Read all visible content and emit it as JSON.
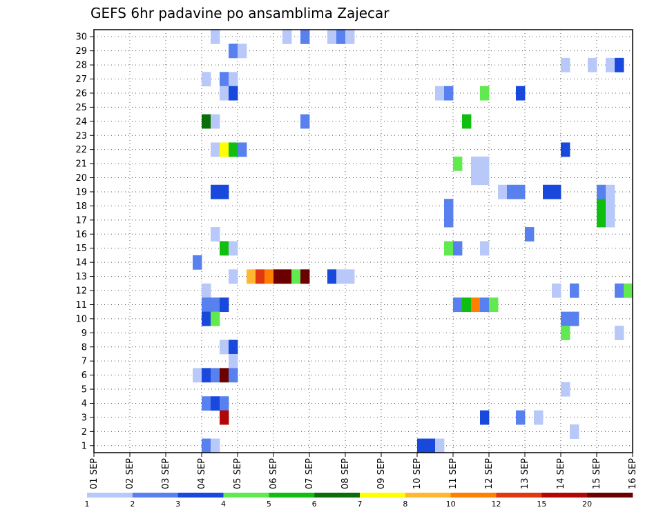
{
  "chart_data": {
    "type": "heatmap",
    "title": "GEFS 6hr padavine po ansamblima Zajecar",
    "xlabel": "",
    "ylabel": "",
    "x_ticks": [
      "01 SEP",
      "02 SEP",
      "03 SEP",
      "04 SEP",
      "05 SEP",
      "06 SEP",
      "07 SEP",
      "08 SEP",
      "09 SEP",
      "10 SEP",
      "11 SEP",
      "12 SEP",
      "13 SEP",
      "14 SEP",
      "15 SEP",
      "16 SEP"
    ],
    "xlim": [
      0,
      15
    ],
    "steps_per_day": 4,
    "members": [
      1,
      2,
      3,
      4,
      5,
      6,
      7,
      8,
      9,
      10,
      11,
      12,
      13,
      14,
      15,
      16,
      17,
      18,
      19,
      20,
      21,
      22,
      23,
      24,
      25,
      26,
      27,
      28,
      29,
      30
    ],
    "ylim": [
      0.5,
      30.5
    ],
    "grid": true,
    "colorbar": {
      "placement": "bottom",
      "labels": [
        "1",
        "2",
        "3",
        "4",
        "5",
        "6",
        "7",
        "8",
        "10",
        "12",
        "15",
        "20"
      ],
      "colors": [
        "#b8c8f8",
        "#5880ee",
        "#1848dc",
        "#60ea50",
        "#10be10",
        "#0a6e0a",
        "#ffff00",
        "#ffb830",
        "#ff8000",
        "#e03810",
        "#b00808",
        "#6a0000"
      ]
    },
    "cells": [
      {
        "m": 30,
        "s": 13,
        "v": 1.5
      },
      {
        "m": 30,
        "s": 21,
        "v": 1.5
      },
      {
        "m": 30,
        "s": 23,
        "v": 2.5
      },
      {
        "m": 30,
        "s": 26,
        "v": 1.5
      },
      {
        "m": 30,
        "s": 27,
        "v": 2.5
      },
      {
        "m": 30,
        "s": 28,
        "v": 1.5
      },
      {
        "m": 29,
        "s": 15,
        "v": 2.5
      },
      {
        "m": 29,
        "s": 16,
        "v": 1.5
      },
      {
        "m": 28,
        "s": 52,
        "v": 1.5
      },
      {
        "m": 28,
        "s": 55,
        "v": 1.5
      },
      {
        "m": 28,
        "s": 57,
        "v": 1.5
      },
      {
        "m": 28,
        "s": 58,
        "v": 3.5
      },
      {
        "m": 27,
        "s": 12,
        "v": 1.5
      },
      {
        "m": 27,
        "s": 14,
        "v": 2.5
      },
      {
        "m": 27,
        "s": 15,
        "v": 1.5
      },
      {
        "m": 26,
        "s": 14,
        "v": 1.5
      },
      {
        "m": 26,
        "s": 15,
        "v": 3.5
      },
      {
        "m": 26,
        "s": 38,
        "v": 1.5
      },
      {
        "m": 26,
        "s": 39,
        "v": 2.5
      },
      {
        "m": 26,
        "s": 43,
        "v": 4.5
      },
      {
        "m": 26,
        "s": 47,
        "v": 3.5
      },
      {
        "m": 24,
        "s": 12,
        "v": 6.5
      },
      {
        "m": 24,
        "s": 13,
        "v": 1.5
      },
      {
        "m": 24,
        "s": 23,
        "v": 2.5
      },
      {
        "m": 24,
        "s": 41,
        "v": 5.5
      },
      {
        "m": 22,
        "s": 13,
        "v": 1.5
      },
      {
        "m": 22,
        "s": 14,
        "v": 7.5
      },
      {
        "m": 22,
        "s": 15,
        "v": 5.5
      },
      {
        "m": 22,
        "s": 16,
        "v": 2.5
      },
      {
        "m": 22,
        "s": 52,
        "v": 3.5
      },
      {
        "m": 21,
        "s": 40,
        "v": 4.5
      },
      {
        "m": 21,
        "s": 42,
        "v": 1.5
      },
      {
        "m": 21,
        "s": 43,
        "v": 1.5
      },
      {
        "m": 20,
        "s": 42,
        "v": 1.5
      },
      {
        "m": 20,
        "s": 43,
        "v": 1.5
      },
      {
        "m": 19,
        "s": 13,
        "v": 3.5
      },
      {
        "m": 19,
        "s": 14,
        "v": 3.5
      },
      {
        "m": 19,
        "s": 45,
        "v": 1.5
      },
      {
        "m": 19,
        "s": 46,
        "v": 2.5
      },
      {
        "m": 19,
        "s": 47,
        "v": 2.5
      },
      {
        "m": 19,
        "s": 50,
        "v": 3.5
      },
      {
        "m": 19,
        "s": 51,
        "v": 3.5
      },
      {
        "m": 19,
        "s": 56,
        "v": 2.5
      },
      {
        "m": 19,
        "s": 57,
        "v": 1.5
      },
      {
        "m": 18,
        "s": 39,
        "v": 2.5
      },
      {
        "m": 18,
        "s": 56,
        "v": 5.5
      },
      {
        "m": 18,
        "s": 57,
        "v": 1.5
      },
      {
        "m": 17,
        "s": 39,
        "v": 2.5
      },
      {
        "m": 17,
        "s": 56,
        "v": 5.5
      },
      {
        "m": 17,
        "s": 57,
        "v": 1.5
      },
      {
        "m": 16,
        "s": 13,
        "v": 1.5
      },
      {
        "m": 16,
        "s": 48,
        "v": 2.5
      },
      {
        "m": 15,
        "s": 14,
        "v": 5.5
      },
      {
        "m": 15,
        "s": 15,
        "v": 1.5
      },
      {
        "m": 15,
        "s": 39,
        "v": 4.5
      },
      {
        "m": 15,
        "s": 40,
        "v": 2.5
      },
      {
        "m": 15,
        "s": 43,
        "v": 1.5
      },
      {
        "m": 14,
        "s": 11,
        "v": 2.5
      },
      {
        "m": 13,
        "s": 15,
        "v": 1.5
      },
      {
        "m": 13,
        "s": 17,
        "v": 9
      },
      {
        "m": 13,
        "s": 18,
        "v": 13.5
      },
      {
        "m": 13,
        "s": 19,
        "v": 11
      },
      {
        "m": 13,
        "s": 20,
        "v": 22
      },
      {
        "m": 13,
        "s": 21,
        "v": 22
      },
      {
        "m": 13,
        "s": 22,
        "v": 4.5
      },
      {
        "m": 13,
        "s": 23,
        "v": 22
      },
      {
        "m": 13,
        "s": 26,
        "v": 3.5
      },
      {
        "m": 13,
        "s": 27,
        "v": 1.5
      },
      {
        "m": 13,
        "s": 28,
        "v": 1.5
      },
      {
        "m": 12,
        "s": 12,
        "v": 1.5
      },
      {
        "m": 12,
        "s": 51,
        "v": 1.5
      },
      {
        "m": 12,
        "s": 53,
        "v": 2.5
      },
      {
        "m": 12,
        "s": 58,
        "v": 2.5
      },
      {
        "m": 12,
        "s": 59,
        "v": 4.5
      },
      {
        "m": 11,
        "s": 12,
        "v": 2.5
      },
      {
        "m": 11,
        "s": 13,
        "v": 2.5
      },
      {
        "m": 11,
        "s": 14,
        "v": 3.5
      },
      {
        "m": 11,
        "s": 40,
        "v": 2.5
      },
      {
        "m": 11,
        "s": 41,
        "v": 5.5
      },
      {
        "m": 11,
        "s": 42,
        "v": 11
      },
      {
        "m": 11,
        "s": 43,
        "v": 2.5
      },
      {
        "m": 11,
        "s": 44,
        "v": 4.5
      },
      {
        "m": 10,
        "s": 12,
        "v": 3.5
      },
      {
        "m": 10,
        "s": 13,
        "v": 4.5
      },
      {
        "m": 10,
        "s": 52,
        "v": 2.5
      },
      {
        "m": 10,
        "s": 53,
        "v": 2.5
      },
      {
        "m": 9,
        "s": 52,
        "v": 4.5
      },
      {
        "m": 9,
        "s": 58,
        "v": 1.5
      },
      {
        "m": 8,
        "s": 14,
        "v": 1.5
      },
      {
        "m": 8,
        "s": 15,
        "v": 3.5
      },
      {
        "m": 7,
        "s": 15,
        "v": 1.5
      },
      {
        "m": 6,
        "s": 11,
        "v": 1.5
      },
      {
        "m": 6,
        "s": 12,
        "v": 3.5
      },
      {
        "m": 6,
        "s": 13,
        "v": 2.5
      },
      {
        "m": 6,
        "s": 14,
        "v": 22
      },
      {
        "m": 6,
        "s": 15,
        "v": 2.5
      },
      {
        "m": 5,
        "s": 52,
        "v": 1.5
      },
      {
        "m": 4,
        "s": 12,
        "v": 2.5
      },
      {
        "m": 4,
        "s": 13,
        "v": 3.5
      },
      {
        "m": 4,
        "s": 14,
        "v": 2.5
      },
      {
        "m": 3,
        "s": 14,
        "v": 17
      },
      {
        "m": 3,
        "s": 43,
        "v": 3.5
      },
      {
        "m": 3,
        "s": 47,
        "v": 2.5
      },
      {
        "m": 3,
        "s": 49,
        "v": 1.5
      },
      {
        "m": 2,
        "s": 53,
        "v": 1.5
      },
      {
        "m": 1,
        "s": 12,
        "v": 2.5
      },
      {
        "m": 1,
        "s": 13,
        "v": 1.5
      },
      {
        "m": 1,
        "s": 36,
        "v": 3.5
      },
      {
        "m": 1,
        "s": 37,
        "v": 3.5
      },
      {
        "m": 1,
        "s": 38,
        "v": 1.5
      }
    ]
  }
}
